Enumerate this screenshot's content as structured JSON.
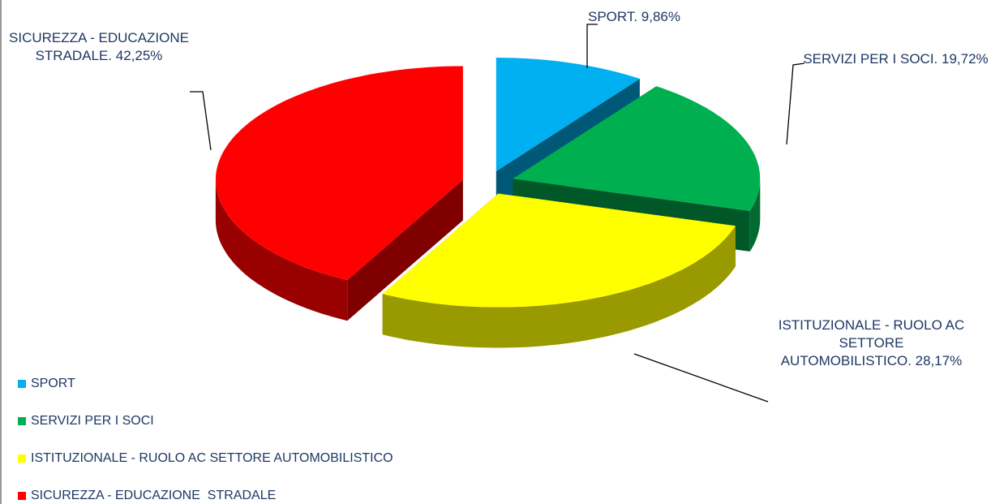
{
  "chart_data": {
    "type": "pie",
    "categories": [
      "SPORT",
      "SERVIZI PER I SOCI",
      "ISTITUZIONALE - RUOLO AC SETTORE AUTOMOBILISTICO",
      "SICUREZZA - EDUCAZIONE  STRADALE"
    ],
    "values": [
      9.86,
      19.72,
      28.17,
      42.25
    ],
    "value_labels": [
      "SPORT. 9,86%",
      "SERVIZI PER I SOCI. 19,72%",
      "ISTITUZIONALE - RUOLO AC SETTORE AUTOMOBILISTICO. 28,17%",
      "SICUREZZA - EDUCAZIONE STRADALE. 42,25%"
    ],
    "colors": [
      "#00b0f0",
      "#00b050",
      "#ffff00",
      "#ff0000"
    ],
    "legend": "bottom-left"
  }
}
